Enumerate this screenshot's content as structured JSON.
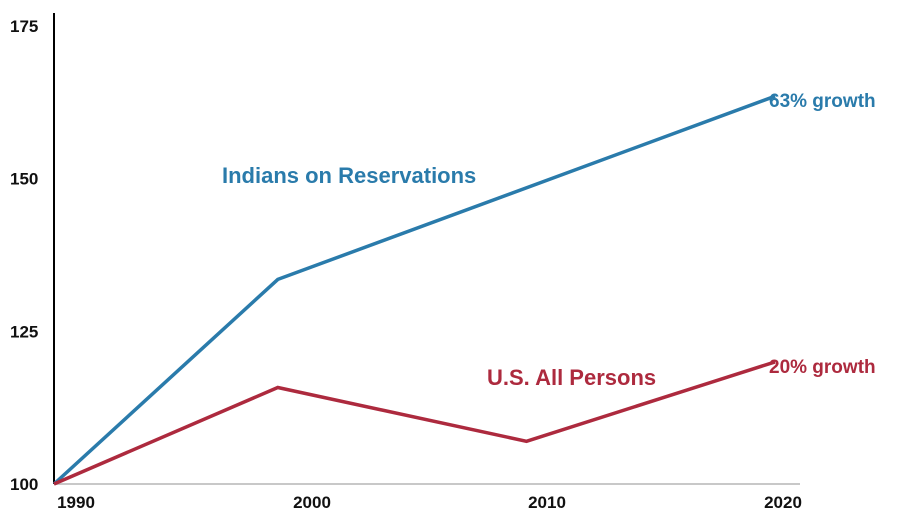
{
  "chart_data": {
    "type": "line",
    "x": [
      1990,
      2000,
      2010,
      2020
    ],
    "x_tick_labels": [
      "1990",
      "2000",
      "2010",
      "2020"
    ],
    "y_ticks": [
      100,
      125,
      150,
      175
    ],
    "y_tick_labels": [
      "100",
      "125",
      "150",
      "175"
    ],
    "xlim": [
      1990,
      2020
    ],
    "ylim": [
      100,
      175
    ],
    "grid": false,
    "series": [
      {
        "name": "Indians on Reservations",
        "color": "#2a7bab",
        "x": [
          1990,
          1999,
          2019
        ],
        "values": [
          100,
          133.5,
          163.5
        ],
        "end_label": "63% growth"
      },
      {
        "name": "U.S. All Persons",
        "color": "#ad2a3e",
        "x": [
          1990,
          1999,
          2009,
          2019
        ],
        "values": [
          100,
          115.8,
          107,
          120
        ],
        "end_label": "20% growth"
      }
    ]
  }
}
